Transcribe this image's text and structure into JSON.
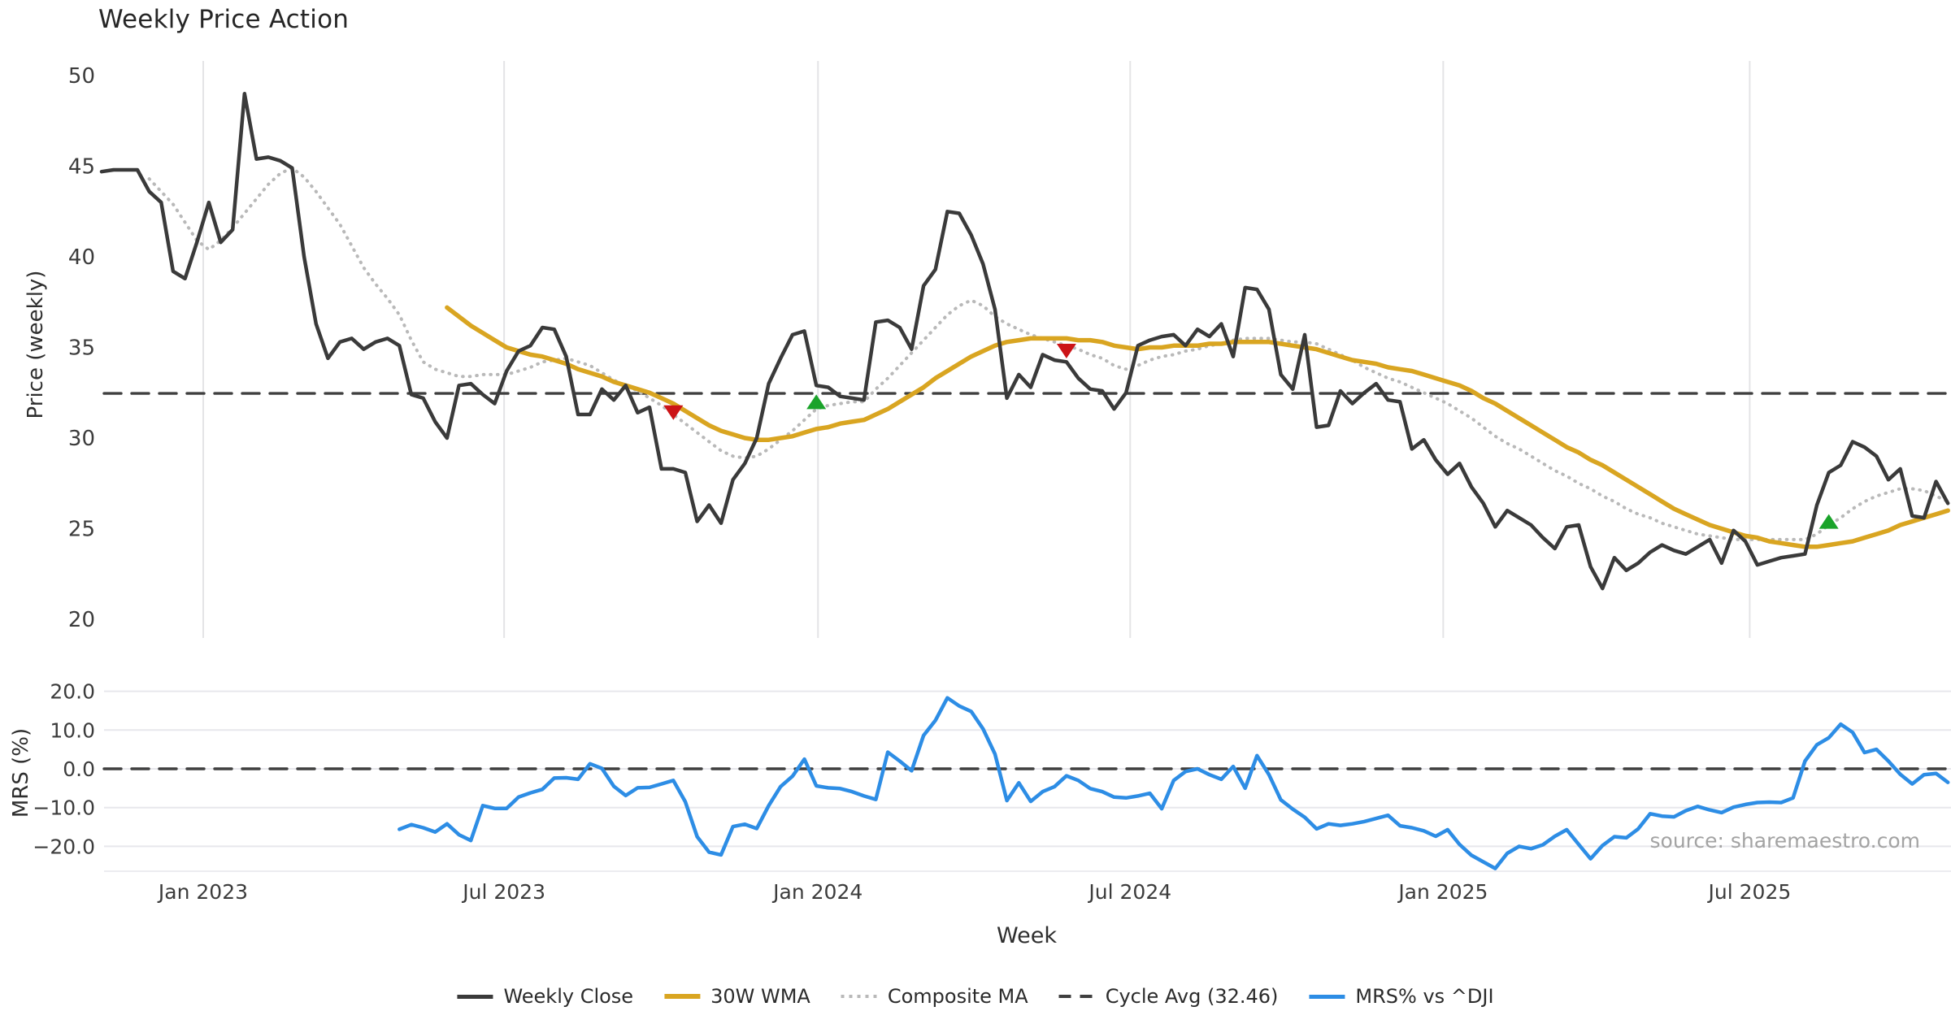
{
  "labels": {
    "title": "Weekly Price Action",
    "xlabel": "Week",
    "price_ylabel": "Price (weekly)",
    "mrs_ylabel": "MRS (%)",
    "source": "source: sharemaestro.com"
  },
  "colors": {
    "close": "#3a3a3a",
    "wma": "#d9a521",
    "composite": "#b9b9b9",
    "cycle": "#3f3f3f",
    "mrs": "#2d8de5",
    "buy": "#1aa32a",
    "sell": "#cc1417",
    "grid_top": "#e4e4e6",
    "grid_bottom": "#e7e7ec",
    "tick_text": "#3c3c3c"
  },
  "legend": [
    {
      "label": "Weekly Close",
      "type": "solid-dark"
    },
    {
      "label": "30W WMA",
      "type": "solid-gold"
    },
    {
      "label": "Composite MA",
      "type": "dotted-gray"
    },
    {
      "label": "Cycle Avg (32.46)",
      "type": "dashed-dark"
    },
    {
      "label": "MRS% vs ^DJI",
      "type": "solid-blue"
    }
  ],
  "chart_data": {
    "type": "line",
    "title": "Weekly Price Action",
    "xlabel": "Week",
    "weeks_total": 156,
    "x_ticks": [
      {
        "label": "Jan 2023",
        "week": 8.53
      },
      {
        "label": "Jul 2023",
        "week": 33.79
      },
      {
        "label": "Jan 2024",
        "week": 60.14
      },
      {
        "label": "Jul 2024",
        "week": 86.35
      },
      {
        "label": "Jan 2025",
        "week": 112.63
      },
      {
        "label": "Jul 2025",
        "week": 138.36
      }
    ],
    "panels": [
      {
        "id": "price",
        "ylabel": "Price (weekly)",
        "yticks": [
          20,
          25,
          30,
          35,
          40,
          45,
          50
        ],
        "ylim": [
          19.0,
          50.8
        ],
        "grid": "vertical"
      },
      {
        "id": "mrs",
        "ylabel": "MRS (%)",
        "yticks": [
          20,
          10,
          0,
          -10,
          -20
        ],
        "ylim": [
          -26.5,
          22.0
        ],
        "grid": "horizontal"
      }
    ],
    "series": [
      {
        "id": "weekly_close",
        "name": "Weekly Close",
        "panel": "price",
        "style": "solid",
        "start_week": 0,
        "values": [
          44.7,
          44.8,
          44.8,
          44.8,
          43.6,
          43.0,
          39.2,
          38.8,
          40.8,
          43.0,
          40.8,
          41.5,
          49.0,
          45.4,
          45.5,
          45.3,
          44.9,
          40.0,
          36.3,
          34.4,
          35.3,
          35.5,
          34.9,
          35.3,
          35.5,
          35.1,
          32.4,
          32.2,
          30.9,
          30.0,
          32.9,
          33.0,
          32.4,
          31.9,
          33.7,
          34.8,
          35.1,
          36.1,
          36.0,
          34.5,
          31.3,
          31.3,
          32.7,
          32.1,
          32.9,
          31.4,
          31.7,
          28.3,
          28.3,
          28.1,
          25.4,
          26.3,
          25.3,
          27.7,
          28.6,
          30.0,
          33.0,
          34.4,
          35.7,
          35.9,
          32.9,
          32.8,
          32.3,
          32.2,
          32.1,
          36.4,
          36.5,
          36.1,
          34.9,
          38.4,
          39.3,
          42.5,
          42.4,
          41.2,
          39.6,
          37.1,
          32.2,
          33.5,
          32.8,
          34.6,
          34.3,
          34.2,
          33.3,
          32.7,
          32.6,
          31.6,
          32.5,
          35.1,
          35.4,
          35.6,
          35.7,
          35.1,
          36.0,
          35.6,
          36.3,
          34.5,
          38.3,
          38.2,
          37.1,
          33.5,
          32.7,
          35.7,
          30.6,
          30.7,
          32.6,
          31.9,
          32.5,
          33.0,
          32.1,
          32.0,
          29.4,
          29.9,
          28.8,
          28.0,
          28.6,
          27.3,
          26.4,
          25.1,
          26.0,
          25.6,
          25.2,
          24.5,
          23.9,
          25.1,
          25.2,
          22.9,
          21.7,
          23.4,
          22.7,
          23.1,
          23.7,
          24.1,
          23.8,
          23.6,
          24.0,
          24.4,
          23.1,
          24.9,
          24.3,
          23.0,
          23.2,
          23.4,
          23.5,
          23.6,
          26.3,
          28.1,
          28.5,
          29.8,
          29.5,
          29.0,
          27.7,
          28.3,
          25.7,
          25.6,
          27.6,
          26.4
        ]
      },
      {
        "id": "wma30",
        "name": "30W WMA",
        "panel": "price",
        "style": "solid",
        "start_week": 29,
        "values": [
          37.2,
          36.7,
          36.2,
          35.8,
          35.4,
          35.0,
          34.8,
          34.6,
          34.5,
          34.3,
          34.1,
          33.8,
          33.6,
          33.4,
          33.1,
          32.9,
          32.7,
          32.5,
          32.2,
          31.9,
          31.5,
          31.1,
          30.7,
          30.4,
          30.2,
          30.0,
          29.9,
          29.9,
          30.0,
          30.1,
          30.3,
          30.5,
          30.6,
          30.8,
          30.9,
          31.0,
          31.3,
          31.6,
          32.0,
          32.4,
          32.8,
          33.3,
          33.7,
          34.1,
          34.5,
          34.8,
          35.1,
          35.3,
          35.4,
          35.5,
          35.5,
          35.5,
          35.5,
          35.4,
          35.4,
          35.3,
          35.1,
          35.0,
          34.9,
          35.0,
          35.0,
          35.1,
          35.1,
          35.1,
          35.2,
          35.2,
          35.3,
          35.3,
          35.3,
          35.3,
          35.2,
          35.1,
          35.0,
          34.9,
          34.7,
          34.5,
          34.3,
          34.2,
          34.1,
          33.9,
          33.8,
          33.7,
          33.5,
          33.3,
          33.1,
          32.9,
          32.6,
          32.2,
          31.9,
          31.5,
          31.1,
          30.7,
          30.3,
          29.9,
          29.5,
          29.2,
          28.8,
          28.5,
          28.1,
          27.7,
          27.3,
          26.9,
          26.5,
          26.1,
          25.8,
          25.5,
          25.2,
          25.0,
          24.8,
          24.6,
          24.5,
          24.3,
          24.2,
          24.1,
          24.0,
          24.0,
          24.1,
          24.2,
          24.3,
          24.5,
          24.7,
          24.9,
          25.2,
          25.4,
          25.6,
          25.8,
          26.0
        ]
      },
      {
        "id": "composite",
        "name": "Composite MA",
        "panel": "price",
        "style": "dotted",
        "start_week": 4,
        "values": [
          44.3,
          43.6,
          42.9,
          41.9,
          40.9,
          40.4,
          40.9,
          41.6,
          42.4,
          43.2,
          44.0,
          44.6,
          44.9,
          44.4,
          43.6,
          42.7,
          41.8,
          40.6,
          39.4,
          38.5,
          37.7,
          36.8,
          35.4,
          34.2,
          33.8,
          33.6,
          33.4,
          33.4,
          33.5,
          33.5,
          33.5,
          33.7,
          33.9,
          34.2,
          34.3,
          34.4,
          34.2,
          34.0,
          33.6,
          33.2,
          32.9,
          32.6,
          32.2,
          31.8,
          31.3,
          30.8,
          30.3,
          29.8,
          29.3,
          29.0,
          28.9,
          29.0,
          29.4,
          29.9,
          30.4,
          31.0,
          31.6,
          31.8,
          31.9,
          32.0,
          32.0,
          32.7,
          33.3,
          34.0,
          34.7,
          35.4,
          36.1,
          36.8,
          37.3,
          37.6,
          37.3,
          36.7,
          36.3,
          36.0,
          35.7,
          35.5,
          35.3,
          35.1,
          34.9,
          34.6,
          34.4,
          34.0,
          33.8,
          34.0,
          34.3,
          34.5,
          34.6,
          34.8,
          34.9,
          35.1,
          35.2,
          35.4,
          35.5,
          35.5,
          35.5,
          35.4,
          35.3,
          35.3,
          35.2,
          34.9,
          34.6,
          34.3,
          33.9,
          33.6,
          33.3,
          33.1,
          32.8,
          32.5,
          32.2,
          31.9,
          31.5,
          31.1,
          30.6,
          30.1,
          29.7,
          29.4,
          29.0,
          28.6,
          28.2,
          27.9,
          27.5,
          27.2,
          26.8,
          26.5,
          26.1,
          25.8,
          25.6,
          25.3,
          25.1,
          24.9,
          24.7,
          24.6,
          24.5,
          24.4,
          24.4,
          24.4,
          24.4,
          24.4,
          24.4,
          24.4,
          24.7,
          25.2,
          25.6,
          26.1,
          26.5,
          26.8,
          27.0,
          27.2,
          27.2,
          27.1,
          26.8,
          26.5
        ]
      },
      {
        "id": "cycle_avg",
        "name": "Cycle Avg (32.46)",
        "panel": "price",
        "style": "dashed",
        "constant": 32.46
      },
      {
        "id": "mrs_dji",
        "name": "MRS% vs ^DJI",
        "panel": "mrs",
        "style": "solid",
        "start_week": 25,
        "values": [
          -15.6,
          -14.4,
          -15.2,
          -16.3,
          -14.2,
          -17.0,
          -18.5,
          -9.5,
          -10.2,
          -10.2,
          -7.3,
          -6.2,
          -5.3,
          -2.4,
          -2.3,
          -2.7,
          1.3,
          0.1,
          -4.5,
          -6.9,
          -4.9,
          -4.8,
          -3.9,
          -3.0,
          -8.5,
          -17.5,
          -21.5,
          -22.2,
          -14.9,
          -14.3,
          -15.4,
          -9.5,
          -4.6,
          -1.9,
          2.5,
          -4.4,
          -4.9,
          -5.1,
          -5.9,
          -7.0,
          -7.9,
          4.3,
          2.0,
          -0.5,
          8.6,
          12.5,
          18.3,
          16.2,
          14.8,
          10.3,
          3.8,
          -8.2,
          -3.6,
          -8.4,
          -5.9,
          -4.6,
          -1.8,
          -3.0,
          -5.1,
          -5.9,
          -7.3,
          -7.5,
          -7.0,
          -6.3,
          -10.3,
          -3.0,
          -0.7,
          0.0,
          -1.5,
          -2.7,
          0.6,
          -5.0,
          3.4,
          -1.5,
          -8.0,
          -10.4,
          -12.5,
          -15.5,
          -14.2,
          -14.6,
          -14.2,
          -13.6,
          -12.8,
          -12.0,
          -14.7,
          -15.2,
          -16.0,
          -17.4,
          -15.7,
          -19.5,
          -22.3,
          -24.0,
          -25.7,
          -21.8,
          -20.0,
          -20.6,
          -19.6,
          -17.4,
          -15.7,
          -19.5,
          -23.2,
          -19.8,
          -17.5,
          -17.8,
          -15.5,
          -11.6,
          -12.2,
          -12.4,
          -10.8,
          -9.7,
          -10.6,
          -11.3,
          -9.9,
          -9.2,
          -8.7,
          -8.6,
          -8.7,
          -7.5,
          2.0,
          6.2,
          8.0,
          11.5,
          9.4,
          4.2,
          5.0,
          2.0,
          -1.4,
          -3.9,
          -1.5,
          -1.2,
          -3.5
        ]
      },
      {
        "id": "mrs_zero",
        "name": "",
        "panel": "mrs",
        "style": "dashed",
        "constant": 0
      }
    ],
    "markers": {
      "buy": {
        "shape": "triangle-up",
        "points": [
          {
            "week": 60,
            "value": 32.0
          },
          {
            "week": 145,
            "value": 25.4
          }
        ]
      },
      "sell": {
        "shape": "triangle-down",
        "points": [
          {
            "week": 48,
            "value": 31.4
          },
          {
            "week": 81,
            "value": 34.8
          }
        ]
      }
    }
  }
}
